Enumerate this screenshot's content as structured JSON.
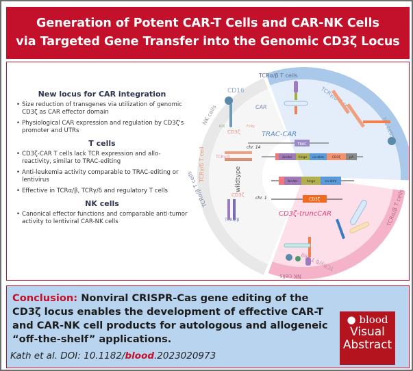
{
  "header": {
    "title_line1": "Generation of Potent CAR-T Cells and CAR-NK Cells",
    "title_line2": "via Targeted Gene Transfer into the Genomic CD3ζ Locus"
  },
  "sections": [
    {
      "heading": "New locus for CAR integration",
      "bullets": [
        "Size reduction of transgenes via utilization of genomic CD3ζ as CAR effector domain",
        "Physiological CAR expression and regulation by CD3ζ's promoter and UTRs"
      ]
    },
    {
      "heading": "T cells",
      "bullets": [
        "CD3ζ-CAR T cells lack TCR expression and allo-reactivity, similar to TRAC-editing",
        "Anti-leukemia activity comparable to TRAC-editing or lentivirus",
        "Effective in TCRα/β, TCRγ/δ and regulatory T cells"
      ]
    },
    {
      "heading": "NK cells",
      "bullets": [
        "Canonical effector functions and comparable anti-tumor activity to lentiviral CAR-NK cells"
      ]
    }
  ],
  "diagram": {
    "wildtype": {
      "label": "wildtype",
      "band": [
        "NK cells",
        "TCRγ/δ T cell",
        "TCRα/β T cells"
      ],
      "markers": [
        "CD16",
        "KIR",
        "FcRγ",
        "CD3ζ",
        "TCRγ/δ",
        "CD3ζ",
        "TCRα/β"
      ],
      "color": "#e6e6e6"
    },
    "trac": {
      "label": "TRAC-CAR",
      "band": [
        "TCRα/β T cells",
        "TCRγ/δ T cell",
        "NK cells"
      ],
      "car_label": "CAR",
      "chr": "chr. 14",
      "gene": "TRAC",
      "construct": [
        "",
        "binder",
        "hinge",
        "co-stim",
        "CD3ζ",
        "pA"
      ],
      "color": "#dce9f7",
      "band_color": "#a9c8ea"
    },
    "trunc": {
      "label": "CD3ζ-truncCAR",
      "band": [
        "TCRα/β T cells",
        "TCRγ/δ T cell",
        "NK cells"
      ],
      "chr": "chr. 1",
      "gene": "CD3ζ",
      "construct": [
        "",
        "binder",
        "hinge",
        "co-stim"
      ],
      "color": "#fbdbe6",
      "band_color": "#f5b0c8"
    }
  },
  "conclusion": {
    "label": "Conclusion:",
    "text": "Nonviral CRISPR-Cas gene editing of the CD3ζ locus enables the development of effective CAR-T and CAR-NK cell products for autologous and allogeneic “off-the-shelf” applications."
  },
  "citation": {
    "prefix": "Kath et al. DOI: 10.1182/",
    "journal": "blood",
    "suffix": ".2023020973"
  },
  "logo": {
    "brand": "blood",
    "line1": "Visual",
    "line2": "Abstract"
  },
  "colors": {
    "brand_red": "#c3102b",
    "conclusion_bg": "#b8d4ef"
  }
}
